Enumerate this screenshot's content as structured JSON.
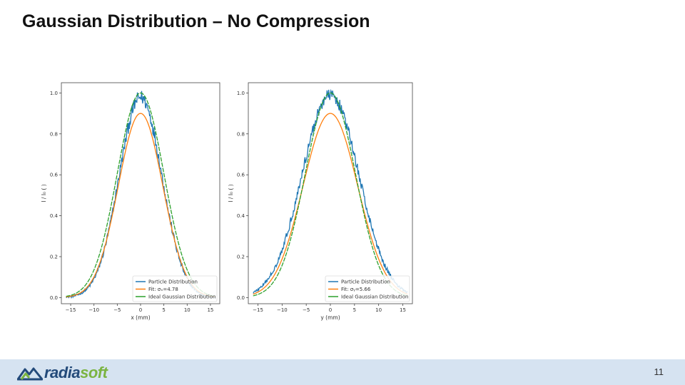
{
  "slide": {
    "title": "Gaussian Distribution – No Compression",
    "page_number": "11"
  },
  "footer": {
    "logo_text_a": "radia",
    "logo_text_b": "soft",
    "logo_icon": "mountain-icon",
    "logo_colors": {
      "primary": "#234a7a",
      "accent": "#7bb441"
    },
    "background": "#d6e3f1"
  },
  "chart_data": [
    {
      "type": "line",
      "title": "",
      "xlabel": "x (mm)",
      "ylabel": "I / I₀ ( )",
      "xlim": [
        -17,
        17
      ],
      "ylim": [
        -0.03,
        1.05
      ],
      "xticks": [
        -15,
        -10,
        -5,
        0,
        5,
        10,
        15
      ],
      "yticks": [
        0.0,
        0.2,
        0.4,
        0.6,
        0.8,
        1.0
      ],
      "x_tick_labels": [
        "−15",
        "−10",
        "−5",
        "0",
        "5",
        "10",
        "15"
      ],
      "y_tick_labels": [
        "0.0",
        "0.2",
        "0.4",
        "0.6",
        "0.8",
        "1.0"
      ],
      "grid": false,
      "legend_position": "lower right",
      "series": [
        {
          "name": "Particle Distribution",
          "color": "#1f77b4",
          "sigma": 4.6,
          "amplitude": 0.98,
          "noise": 0.035
        },
        {
          "name": "Fit: σₓ=4.78",
          "color": "#ff7f0e",
          "sigma": 4.78,
          "amplitude": 0.9
        },
        {
          "name": "Ideal Gaussian Distribution",
          "color": "#2ca02c",
          "sigma": 5.0,
          "amplitude": 1.0,
          "dashed": true
        }
      ]
    },
    {
      "type": "line",
      "title": "",
      "xlabel": "y (mm)",
      "ylabel": "I / I₀ ( )",
      "xlim": [
        -17,
        17
      ],
      "ylim": [
        -0.03,
        1.05
      ],
      "xticks": [
        -15,
        -10,
        -5,
        0,
        5,
        10,
        15
      ],
      "yticks": [
        0.0,
        0.2,
        0.4,
        0.6,
        0.8,
        1.0
      ],
      "x_tick_labels": [
        "−15",
        "−10",
        "−5",
        "0",
        "5",
        "10",
        "15"
      ],
      "y_tick_labels": [
        "0.0",
        "0.2",
        "0.4",
        "0.6",
        "0.8",
        "1.0"
      ],
      "grid": false,
      "legend_position": "lower right",
      "series": [
        {
          "name": "Particle Distribution",
          "color": "#1f77b4",
          "sigma": 5.9,
          "amplitude": 0.99,
          "noise": 0.03
        },
        {
          "name": "Fit: σᵧ=5.66",
          "color": "#ff7f0e",
          "sigma": 5.66,
          "amplitude": 0.9
        },
        {
          "name": "Ideal Gaussian Distribution",
          "color": "#2ca02c",
          "sigma": 5.2,
          "amplitude": 1.0,
          "dashed": true
        }
      ]
    }
  ]
}
